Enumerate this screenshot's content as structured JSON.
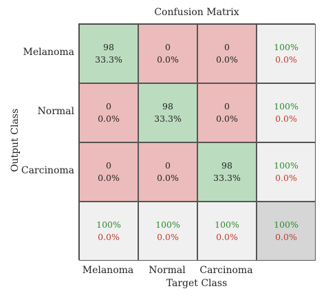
{
  "chart_data": {
    "type": "heatmap",
    "title": "Confusion Matrix",
    "xlabel": "Target Class",
    "ylabel": "Output Class",
    "classes": [
      "Melanoma",
      "Normal",
      "Carcinoma"
    ],
    "matrix": [
      [
        {
          "count": "98",
          "pct": "33.3%"
        },
        {
          "count": "0",
          "pct": "0.0%"
        },
        {
          "count": "0",
          "pct": "0.0%"
        }
      ],
      [
        {
          "count": "0",
          "pct": "0.0%"
        },
        {
          "count": "98",
          "pct": "33.3%"
        },
        {
          "count": "0",
          "pct": "0.0%"
        }
      ],
      [
        {
          "count": "0",
          "pct": "0.0%"
        },
        {
          "count": "0",
          "pct": "0.0%"
        },
        {
          "count": "98",
          "pct": "33.3%"
        }
      ]
    ],
    "row_summary": [
      {
        "correct": "100%",
        "incorrect": "0.0%"
      },
      {
        "correct": "100%",
        "incorrect": "0.0%"
      },
      {
        "correct": "100%",
        "incorrect": "0.0%"
      }
    ],
    "col_summary": [
      {
        "correct": "100%",
        "incorrect": "0.0%"
      },
      {
        "correct": "100%",
        "incorrect": "0.0%"
      },
      {
        "correct": "100%",
        "incorrect": "0.0%"
      }
    ],
    "overall": {
      "correct": "100%",
      "incorrect": "0.0%"
    },
    "colors": {
      "diagonal": "#bcdcbf",
      "off_diagonal": "#ebbcbb",
      "summary": "#f0f0f0",
      "overall": "#d6d6d6",
      "correct_text": "#2a8a2a",
      "incorrect_text": "#c0392b"
    }
  }
}
